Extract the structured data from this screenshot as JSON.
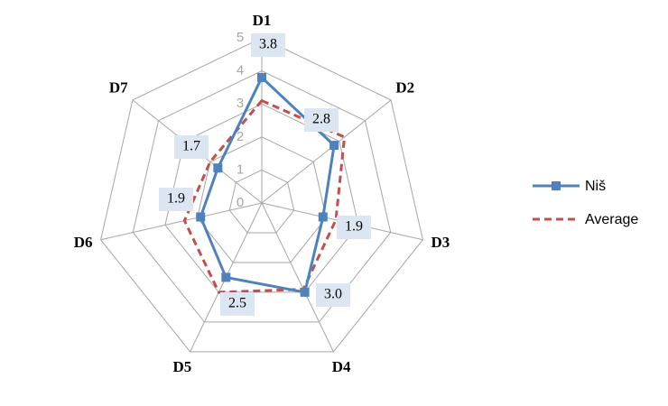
{
  "chart_data": {
    "type": "radar",
    "categories": [
      "D1",
      "D2",
      "D3",
      "D4",
      "D5",
      "D6",
      "D7"
    ],
    "rlim": [
      0,
      5
    ],
    "rticks": [
      0,
      1,
      2,
      3,
      4,
      5
    ],
    "series": [
      {
        "name": "Niš",
        "color": "#4f81bd",
        "values": [
          3.8,
          2.8,
          1.9,
          3.0,
          2.5,
          1.9,
          1.7
        ],
        "value_labels": [
          "3.8",
          "2.8",
          "1.9",
          "3.0",
          "2.5",
          "1.9",
          "1.7"
        ]
      },
      {
        "name": "Average",
        "color": "#c0504d",
        "dashed": true,
        "values": [
          3.1,
          3.2,
          2.3,
          2.9,
          3.0,
          2.4,
          2.0
        ]
      }
    ]
  }
}
